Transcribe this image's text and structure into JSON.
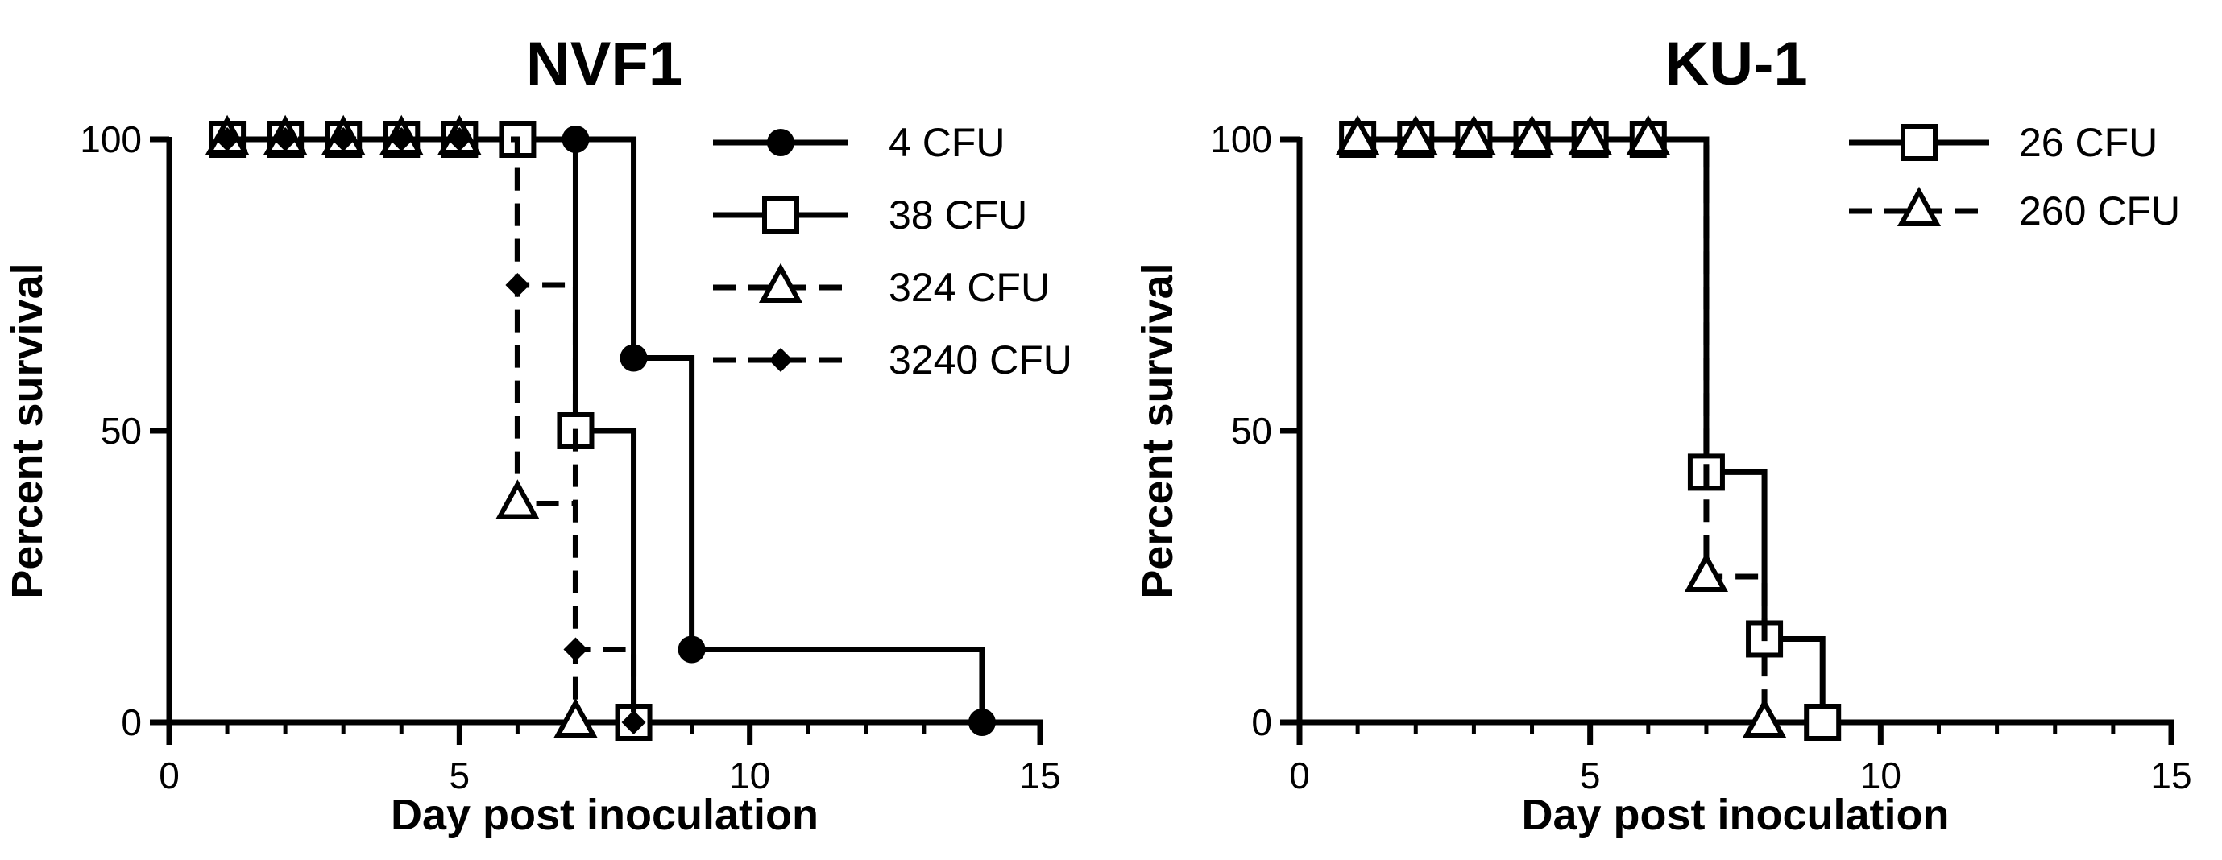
{
  "chart_data": [
    {
      "type": "line",
      "step": true,
      "title": "NVF1",
      "xlabel": "Day post inoculation",
      "ylabel": "Percent survival",
      "xlim": [
        0,
        15
      ],
      "ylim": [
        0,
        100
      ],
      "xticks": [
        "0",
        "5",
        "10",
        "15"
      ],
      "yticks": [
        "0",
        "50",
        "100"
      ],
      "legend_position": "top-right",
      "series": [
        {
          "name": "4 CFU",
          "marker": "circle",
          "dash": "solid",
          "x": [
            1,
            2,
            3,
            4,
            5,
            6,
            7,
            8,
            9,
            14
          ],
          "y": [
            100,
            100,
            100,
            100,
            100,
            100,
            100,
            62.5,
            12.5,
            0
          ]
        },
        {
          "name": "38 CFU",
          "marker": "square",
          "dash": "solid",
          "x": [
            1,
            2,
            3,
            4,
            5,
            6,
            7,
            8
          ],
          "y": [
            100,
            100,
            100,
            100,
            100,
            100,
            50,
            0
          ]
        },
        {
          "name": "324 CFU",
          "marker": "triangle",
          "dash": "dashed",
          "x": [
            1,
            2,
            3,
            4,
            5,
            6,
            7
          ],
          "y": [
            100,
            100,
            100,
            100,
            100,
            37.5,
            0
          ]
        },
        {
          "name": "3240 CFU",
          "marker": "diamond",
          "dash": "dashed",
          "x": [
            1,
            2,
            3,
            4,
            5,
            6,
            7,
            8
          ],
          "y": [
            100,
            100,
            100,
            100,
            100,
            75,
            12.5,
            0
          ]
        }
      ]
    },
    {
      "type": "line",
      "step": true,
      "title": "KU-1",
      "xlabel": "Day post inoculation",
      "ylabel": "Percent survival",
      "xlim": [
        0,
        15
      ],
      "ylim": [
        0,
        100
      ],
      "xticks": [
        "0",
        "5",
        "10",
        "15"
      ],
      "yticks": [
        "0",
        "50",
        "100"
      ],
      "legend_position": "top-right",
      "series": [
        {
          "name": "26 CFU",
          "marker": "square",
          "dash": "solid",
          "x": [
            1,
            2,
            3,
            4,
            5,
            6,
            7,
            8,
            9
          ],
          "y": [
            100,
            100,
            100,
            100,
            100,
            100,
            42.9,
            14.3,
            0
          ]
        },
        {
          "name": "260 CFU",
          "marker": "triangle",
          "dash": "dashed",
          "x": [
            1,
            2,
            3,
            4,
            5,
            6,
            7,
            8
          ],
          "y": [
            100,
            100,
            100,
            100,
            100,
            100,
            25,
            0
          ]
        }
      ]
    }
  ]
}
